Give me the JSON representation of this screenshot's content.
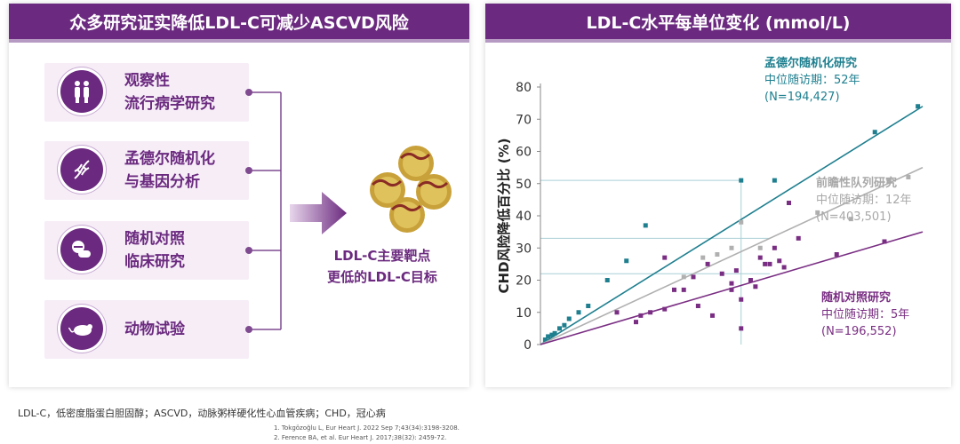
{
  "left": {
    "banner": "众多研究证实降低LDL-C可减少ASCVD风险",
    "studies": [
      {
        "line1": "观察性",
        "line2": "流行病学研究",
        "icon": "people-icon"
      },
      {
        "line1": "孟德尔随机化",
        "line2": "与基因分析",
        "icon": "dna-icon"
      },
      {
        "line1": "随机对照",
        "line2": "临床研究",
        "icon": "pills-icon"
      },
      {
        "line1": "动物试验",
        "line2": "",
        "icon": "mouse-icon"
      }
    ],
    "target_line1": "LDL-C主要靶点",
    "target_line2": "更低的LDL-C目标"
  },
  "right": {
    "banner": "LDL-C水平每单位变化 (mmol/L)"
  },
  "footer": {
    "abbreviations": "LDL-C，低密度脂蛋白胆固醇；ASCVD，动脉粥样硬化性心血管疾病；CHD，冠心病",
    "ref1": "1.  Tokgözoğlu L, Eur Heart J. 2022 Sep 7;43(34):3198-3208.",
    "ref2": "2.  Ference BA, et al. Eur Heart J. 2017;38(32): 2459-72."
  },
  "colors": {
    "purple": "#6b2a7f",
    "teal": "#1e7f8f",
    "gray": "#b0b0b0",
    "violet": "#7a2e83"
  },
  "chart_data": {
    "type": "scatter",
    "title": "LDL-C水平每单位变化 (mmol/L)",
    "ylabel": "CHD风险降低百分比 (%)",
    "xlabel": "",
    "ylim": [
      0,
      80
    ],
    "yticks": [
      0,
      10,
      20,
      30,
      40,
      50,
      60,
      70,
      80
    ],
    "xlim": [
      0,
      4
    ],
    "series": [
      {
        "name": "孟德尔随机化研究",
        "sub1": "中位随访期：52年",
        "sub2": "(N=194,427)",
        "color": "#1e7f8f",
        "line": [
          [
            0,
            0
          ],
          [
            4,
            74
          ]
        ],
        "points": [
          [
            0.05,
            1.5
          ],
          [
            0.08,
            2.5
          ],
          [
            0.12,
            3
          ],
          [
            0.15,
            3.5
          ],
          [
            0.2,
            5
          ],
          [
            0.25,
            6
          ],
          [
            0.3,
            8
          ],
          [
            0.4,
            10
          ],
          [
            0.5,
            12
          ],
          [
            0.7,
            20
          ],
          [
            1.1,
            37
          ],
          [
            0.9,
            26
          ],
          [
            2.1,
            51
          ],
          [
            2.45,
            51
          ],
          [
            3.5,
            66
          ],
          [
            3.95,
            74
          ]
        ]
      },
      {
        "name": "前瞻性队列研究",
        "sub1": "中位随访期：12年",
        "sub2": "(N=403,501)",
        "color": "#b0b0b0",
        "line": [
          [
            0,
            0
          ],
          [
            4,
            55
          ]
        ],
        "points": [
          [
            1.5,
            21
          ],
          [
            2.0,
            30
          ],
          [
            2.1,
            38
          ],
          [
            2.9,
            41
          ],
          [
            3.25,
            39
          ],
          [
            3.65,
            51
          ],
          [
            3.85,
            52
          ],
          [
            1.85,
            28
          ],
          [
            1.7,
            27
          ],
          [
            2.3,
            30
          ]
        ]
      },
      {
        "name": "随机对照研究",
        "sub1": "中位随访期：5年",
        "sub2": "(N=196,552)",
        "color": "#7a2e83",
        "line": [
          [
            0,
            0
          ],
          [
            4,
            35
          ]
        ],
        "points": [
          [
            0.8,
            10
          ],
          [
            1.0,
            7
          ],
          [
            1.05,
            9
          ],
          [
            1.15,
            10
          ],
          [
            1.3,
            11
          ],
          [
            1.4,
            17
          ],
          [
            1.5,
            17
          ],
          [
            1.65,
            12
          ],
          [
            1.75,
            25
          ],
          [
            1.9,
            22
          ],
          [
            2.0,
            19
          ],
          [
            2.05,
            23
          ],
          [
            2.1,
            5
          ],
          [
            2.2,
            20
          ],
          [
            2.25,
            18
          ],
          [
            2.35,
            25
          ],
          [
            2.4,
            25
          ],
          [
            2.45,
            30
          ],
          [
            2.5,
            26
          ],
          [
            2.55,
            24
          ],
          [
            2.6,
            44
          ],
          [
            2.3,
            27
          ],
          [
            1.6,
            21
          ],
          [
            1.3,
            27
          ],
          [
            1.8,
            9
          ],
          [
            2.1,
            14
          ],
          [
            3.1,
            28
          ],
          [
            3.6,
            32
          ],
          [
            2.0,
            17
          ],
          [
            2.7,
            33
          ]
        ]
      }
    ],
    "reference_lines": [
      {
        "x": 2.1,
        "y": 51
      },
      {
        "y": 33
      },
      {
        "y": 22
      }
    ]
  }
}
